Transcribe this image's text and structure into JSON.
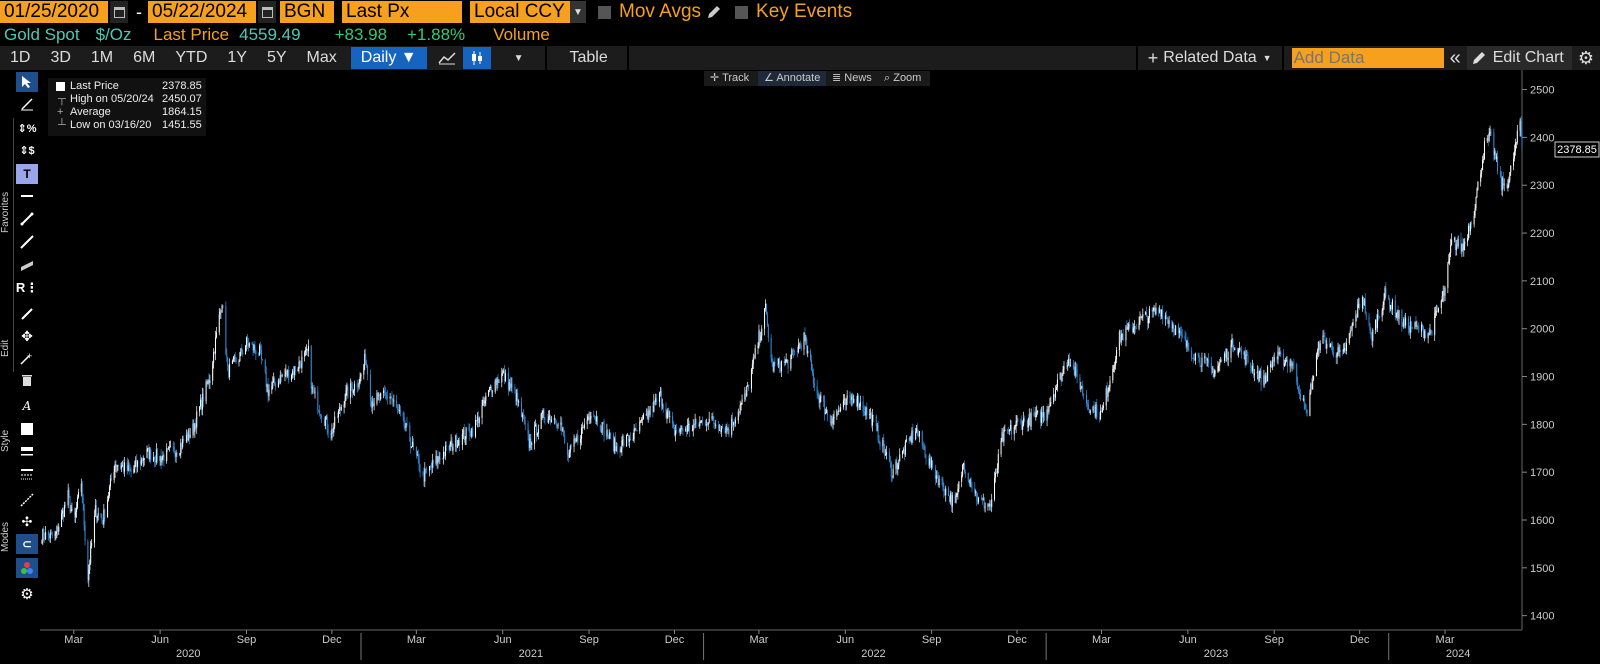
{
  "header": {
    "start_date": "01/25/2020",
    "end_date": "05/22/2024",
    "source": "BGN",
    "field": "Last Px",
    "currency": "Local CCY",
    "mov_avgs": "Mov Avgs",
    "key_events": "Key Events"
  },
  "security": {
    "name": "Gold Spot",
    "unit": "$/Oz",
    "price_label": "Last Price",
    "price": "4559.49",
    "change": "+83.98",
    "change_pct": "+1.88%",
    "volume": "Volume"
  },
  "periods": [
    "1D",
    "3D",
    "1M",
    "6M",
    "YTD",
    "1Y",
    "5Y",
    "Max"
  ],
  "frequency": "Daily ▼",
  "table_label": "Table",
  "related_data": "Related Data",
  "add_data_placeholder": "Add Data",
  "edit_chart": "Edit Chart",
  "chart_toolbar": [
    "Track",
    "Annotate",
    "News",
    "Zoom"
  ],
  "side_labels": {
    "favorites": "Favorites",
    "edit": "Edit",
    "style": "Style",
    "modes": "Modes"
  },
  "legend": [
    {
      "key": "Last Price",
      "value": "2378.85"
    },
    {
      "key": "High on 05/20/24",
      "value": "2450.07"
    },
    {
      "key": "Average",
      "value": "1864.15"
    },
    {
      "key": "Low on 03/16/20",
      "value": "1451.55"
    }
  ],
  "last_price_tag": "2378.85",
  "colors": {
    "accent": "#f7a01d",
    "up": "#2ecc71",
    "price_text": "#4dc9b8",
    "candle_up": "#ffffff",
    "candle_down": "#2f8fe0"
  },
  "chart_data": {
    "type": "candlestick",
    "x_range": [
      "2020-01-25",
      "2024-05-22"
    ],
    "ylim": [
      1370,
      2520
    ],
    "y_ticks": [
      1400,
      1500,
      1600,
      1700,
      1800,
      1900,
      2000,
      2100,
      2200,
      2300,
      2400,
      2500
    ],
    "month_ticks": [
      {
        "label": "Mar",
        "date": "2020-03-01"
      },
      {
        "label": "Jun",
        "date": "2020-06-01"
      },
      {
        "label": "Sep",
        "date": "2020-09-01"
      },
      {
        "label": "Dec",
        "date": "2020-12-01"
      },
      {
        "label": "Mar",
        "date": "2021-03-01"
      },
      {
        "label": "Jun",
        "date": "2021-06-01"
      },
      {
        "label": "Sep",
        "date": "2021-09-01"
      },
      {
        "label": "Dec",
        "date": "2021-12-01"
      },
      {
        "label": "Mar",
        "date": "2022-03-01"
      },
      {
        "label": "Jun",
        "date": "2022-06-01"
      },
      {
        "label": "Sep",
        "date": "2022-09-01"
      },
      {
        "label": "Dec",
        "date": "2022-12-01"
      },
      {
        "label": "Mar",
        "date": "2023-03-01"
      },
      {
        "label": "Jun",
        "date": "2023-06-01"
      },
      {
        "label": "Sep",
        "date": "2023-09-01"
      },
      {
        "label": "Dec",
        "date": "2023-12-01"
      },
      {
        "label": "Mar",
        "date": "2024-03-01"
      }
    ],
    "year_labels": [
      {
        "label": "2020",
        "date": "2020-07-01"
      },
      {
        "label": "2021",
        "date": "2021-07-01"
      },
      {
        "label": "2022",
        "date": "2022-07-01"
      },
      {
        "label": "2023",
        "date": "2023-07-01"
      },
      {
        "label": "2024",
        "date": "2024-03-15"
      }
    ],
    "year_boundaries": [
      "2021-01-01",
      "2022-01-01",
      "2023-01-01",
      "2024-01-01"
    ],
    "series": [
      {
        "values": [
          [
            "2020-01-25",
            1570
          ],
          [
            "2020-02-10",
            1565
          ],
          [
            "2020-02-24",
            1650
          ],
          [
            "2020-03-01",
            1590
          ],
          [
            "2020-03-09",
            1680
          ],
          [
            "2020-03-16",
            1480
          ],
          [
            "2020-03-24",
            1620
          ],
          [
            "2020-04-01",
            1600
          ],
          [
            "2020-04-14",
            1720
          ],
          [
            "2020-05-01",
            1700
          ],
          [
            "2020-05-18",
            1740
          ],
          [
            "2020-06-01",
            1730
          ],
          [
            "2020-06-20",
            1750
          ],
          [
            "2020-07-06",
            1790
          ],
          [
            "2020-07-24",
            1900
          ],
          [
            "2020-08-06",
            2060
          ],
          [
            "2020-08-12",
            1910
          ],
          [
            "2020-08-24",
            1940
          ],
          [
            "2020-09-01",
            1970
          ],
          [
            "2020-09-15",
            1950
          ],
          [
            "2020-09-24",
            1870
          ],
          [
            "2020-10-08",
            1900
          ],
          [
            "2020-10-20",
            1910
          ],
          [
            "2020-11-06",
            1950
          ],
          [
            "2020-11-10",
            1870
          ],
          [
            "2020-11-30",
            1780
          ],
          [
            "2020-12-15",
            1860
          ],
          [
            "2020-12-31",
            1895
          ],
          [
            "2021-01-06",
            1940
          ],
          [
            "2021-01-12",
            1850
          ],
          [
            "2021-02-01",
            1860
          ],
          [
            "2021-02-20",
            1780
          ],
          [
            "2021-03-08",
            1690
          ],
          [
            "2021-03-25",
            1730
          ],
          [
            "2021-04-15",
            1770
          ],
          [
            "2021-05-01",
            1790
          ],
          [
            "2021-05-20",
            1880
          ],
          [
            "2021-06-01",
            1905
          ],
          [
            "2021-06-15",
            1860
          ],
          [
            "2021-06-29",
            1760
          ],
          [
            "2021-07-15",
            1820
          ],
          [
            "2021-08-01",
            1810
          ],
          [
            "2021-08-09",
            1730
          ],
          [
            "2021-08-25",
            1790
          ],
          [
            "2021-09-03",
            1830
          ],
          [
            "2021-09-30",
            1750
          ],
          [
            "2021-10-20",
            1780
          ],
          [
            "2021-11-16",
            1860
          ],
          [
            "2021-11-30",
            1785
          ],
          [
            "2021-12-20",
            1795
          ],
          [
            "2022-01-05",
            1810
          ],
          [
            "2022-01-28",
            1790
          ],
          [
            "2022-02-15",
            1860
          ],
          [
            "2022-03-08",
            2040
          ],
          [
            "2022-03-15",
            1920
          ],
          [
            "2022-04-01",
            1930
          ],
          [
            "2022-04-18",
            1980
          ],
          [
            "2022-05-01",
            1870
          ],
          [
            "2022-05-16",
            1810
          ],
          [
            "2022-06-10",
            1860
          ],
          [
            "2022-06-30",
            1810
          ],
          [
            "2022-07-21",
            1700
          ],
          [
            "2022-08-15",
            1790
          ],
          [
            "2022-09-01",
            1710
          ],
          [
            "2022-09-26",
            1630
          ],
          [
            "2022-10-05",
            1720
          ],
          [
            "2022-10-21",
            1640
          ],
          [
            "2022-11-03",
            1630
          ],
          [
            "2022-11-15",
            1770
          ],
          [
            "2022-12-01",
            1800
          ],
          [
            "2022-12-30",
            1820
          ],
          [
            "2023-01-25",
            1940
          ],
          [
            "2023-02-15",
            1840
          ],
          [
            "2023-03-01",
            1820
          ],
          [
            "2023-03-20",
            1980
          ],
          [
            "2023-04-13",
            2020
          ],
          [
            "2023-05-03",
            2040
          ],
          [
            "2023-05-15",
            2010
          ],
          [
            "2023-06-01",
            1960
          ],
          [
            "2023-06-29",
            1910
          ],
          [
            "2023-07-20",
            1970
          ],
          [
            "2023-08-10",
            1915
          ],
          [
            "2023-08-21",
            1890
          ],
          [
            "2023-09-01",
            1940
          ],
          [
            "2023-09-20",
            1930
          ],
          [
            "2023-10-05",
            1820
          ],
          [
            "2023-10-20",
            1980
          ],
          [
            "2023-11-13",
            1940
          ],
          [
            "2023-12-04",
            2070
          ],
          [
            "2023-12-13",
            1980
          ],
          [
            "2023-12-28",
            2070
          ],
          [
            "2024-01-17",
            2010
          ],
          [
            "2024-02-14",
            1990
          ],
          [
            "2024-03-01",
            2080
          ],
          [
            "2024-03-08",
            2180
          ],
          [
            "2024-03-20",
            2170
          ],
          [
            "2024-04-01",
            2250
          ],
          [
            "2024-04-12",
            2380
          ],
          [
            "2024-04-19",
            2400
          ],
          [
            "2024-04-30",
            2300
          ],
          [
            "2024-05-08",
            2310
          ],
          [
            "2024-05-20",
            2430
          ],
          [
            "2024-05-22",
            2378.85
          ]
        ]
      }
    ]
  }
}
